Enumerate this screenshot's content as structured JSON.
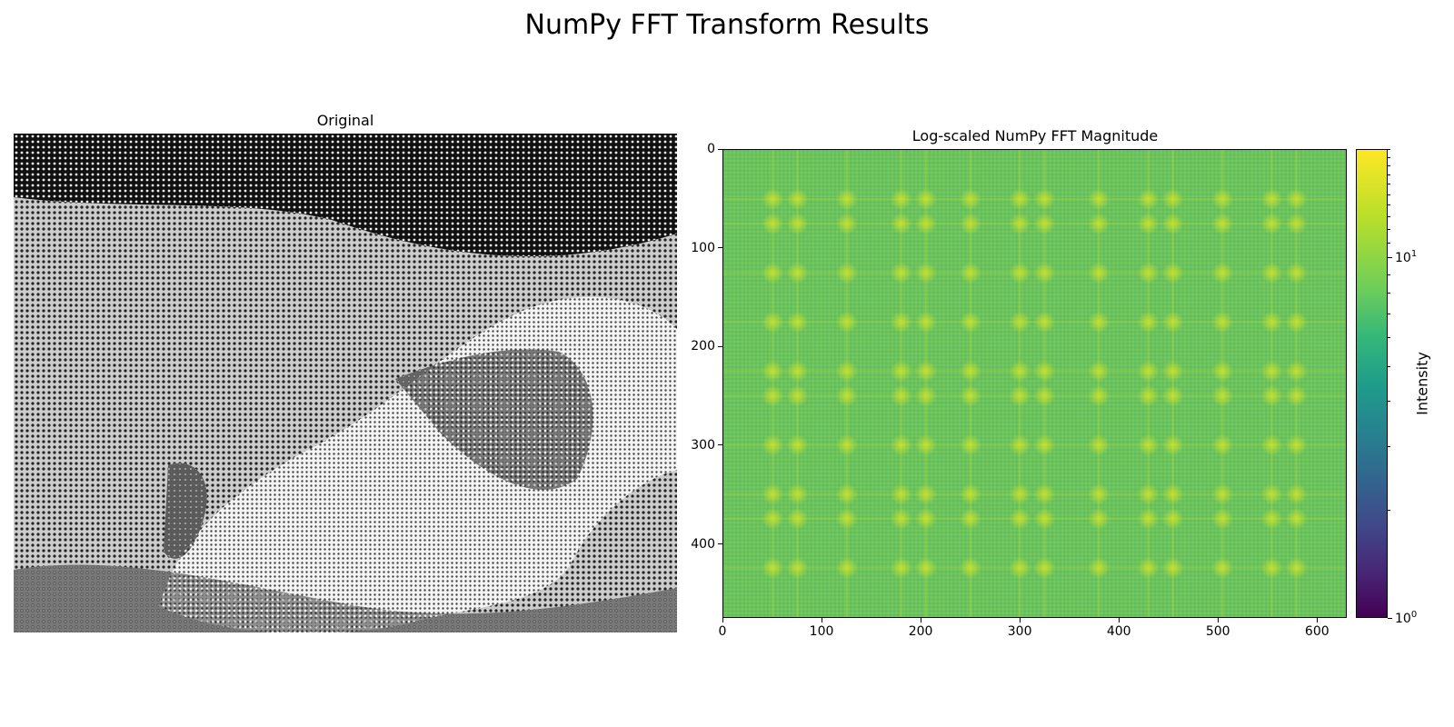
{
  "suptitle": "NumPy FFT Transform Results",
  "panels": {
    "original": {
      "title": "Original"
    },
    "fft": {
      "title": "Log-scaled NumPy FFT Magnitude"
    }
  },
  "chart_data": [
    {
      "type": "image",
      "title": "Original",
      "content": "grayscale photograph"
    },
    {
      "type": "heatmap",
      "title": "Log-scaled NumPy FFT Magnitude",
      "xlim": [
        0,
        630
      ],
      "ylim": [
        475,
        0
      ],
      "x_ticks": [
        0,
        100,
        200,
        300,
        400,
        500,
        600
      ],
      "y_ticks": [
        0,
        100,
        200,
        300,
        400
      ],
      "colormap": "viridis",
      "colorbar": {
        "label": "Intensity",
        "scale": "log",
        "range": [
          1,
          20
        ],
        "major_ticks": [
          {
            "base": "10",
            "exp": "0",
            "value": 1
          },
          {
            "base": "10",
            "exp": "1",
            "value": 10
          }
        ]
      },
      "peak_x": [
        50,
        75,
        125,
        180,
        205,
        250,
        300,
        325,
        380,
        430,
        455,
        505,
        555,
        580
      ],
      "peak_y": [
        50,
        75,
        125,
        175,
        225,
        250,
        300,
        350,
        375,
        425
      ]
    }
  ],
  "colors": {
    "base_green": "#6cc35c",
    "peak_yellow": "#b8de30"
  }
}
